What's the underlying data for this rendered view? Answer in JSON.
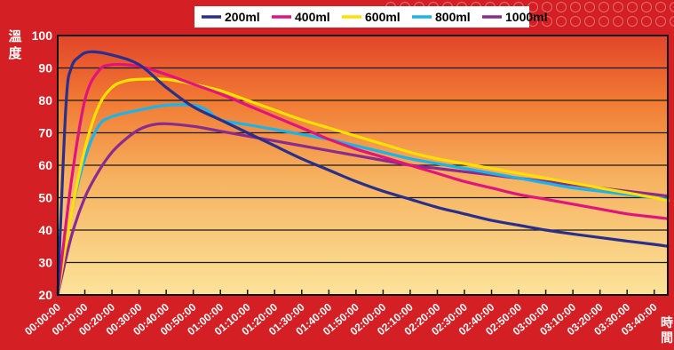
{
  "chart_data": {
    "type": "line",
    "title": "",
    "ylabel": "溫度",
    "xlabel": "時間",
    "ylim": [
      20,
      100
    ],
    "yticks": [
      20,
      30,
      40,
      50,
      60,
      70,
      80,
      90,
      100
    ],
    "x_tick_labels": [
      "00:00:00",
      "00:10:00",
      "00:20:00",
      "00:30:00",
      "00:40:00",
      "00:50:00",
      "01:00:00",
      "01:10:00",
      "01:20:00",
      "01:30:00",
      "01:40:00",
      "01:50:00",
      "02:00:00",
      "02:10:00",
      "02:20:00",
      "02:30:00",
      "02:40:00",
      "02:50:00",
      "03:00:00",
      "03:10:00",
      "03:20:00",
      "03:30:00",
      "03:40:00"
    ],
    "xlim_minutes": [
      0,
      225
    ],
    "x_unit_note": "minutes",
    "grid": true,
    "legend_position": "top",
    "series": [
      {
        "name": "200ml",
        "color": "#2a2f8c",
        "x": [
          0,
          3,
          5,
          8,
          12,
          20,
          30,
          40,
          50,
          60,
          70,
          80,
          90,
          100,
          110,
          120,
          130,
          140,
          150,
          160,
          170,
          180,
          190,
          200,
          210,
          220,
          225
        ],
        "y": [
          20,
          78,
          90,
          93.5,
          95,
          94,
          91,
          84,
          78,
          74,
          70,
          66,
          62,
          58.5,
          55,
          52,
          49.5,
          47,
          45,
          43,
          41.5,
          40,
          38.8,
          37.7,
          36.6,
          35.6,
          35
        ]
      },
      {
        "name": "400ml",
        "color": "#e0147e",
        "x": [
          0,
          5,
          10,
          15,
          20,
          30,
          40,
          50,
          60,
          70,
          80,
          90,
          100,
          110,
          120,
          130,
          140,
          150,
          160,
          170,
          180,
          190,
          200,
          210,
          220,
          225
        ],
        "y": [
          20,
          55,
          80,
          89,
          91,
          90.5,
          88,
          85,
          82,
          78.5,
          75,
          71.5,
          68,
          65,
          62.5,
          60,
          57.5,
          55,
          53,
          51,
          49.5,
          48,
          46.5,
          45,
          44,
          43.5
        ]
      },
      {
        "name": "600ml",
        "color": "#ffe000",
        "x": [
          0,
          5,
          10,
          15,
          20,
          25,
          30,
          40,
          50,
          60,
          70,
          80,
          90,
          100,
          110,
          120,
          130,
          140,
          150,
          160,
          170,
          180,
          190,
          200,
          210,
          220,
          225
        ],
        "y": [
          20,
          45,
          65,
          78,
          84,
          86,
          86.5,
          86.5,
          85,
          83,
          80,
          77,
          74,
          71.5,
          69,
          66.5,
          64,
          62,
          60.5,
          59,
          57.5,
          56,
          54.5,
          53,
          51.5,
          50,
          49
        ]
      },
      {
        "name": "800ml",
        "color": "#1ab4e8",
        "x": [
          0,
          5,
          10,
          15,
          20,
          30,
          40,
          50,
          55,
          60,
          70,
          80,
          90,
          100,
          110,
          120,
          130,
          140,
          150,
          160,
          170,
          180,
          190,
          200,
          210,
          220,
          225
        ],
        "y": [
          20,
          45,
          62,
          72,
          75,
          77,
          78.5,
          78.5,
          77,
          74,
          72.5,
          71,
          69.5,
          68,
          66,
          64,
          62,
          60.5,
          59,
          57.5,
          56,
          54.5,
          53,
          52,
          51,
          50,
          49.5
        ]
      },
      {
        "name": "1000ml",
        "color": "#8a2b8f",
        "x": [
          0,
          5,
          10,
          15,
          20,
          25,
          30,
          35,
          40,
          50,
          60,
          70,
          80,
          90,
          100,
          110,
          120,
          130,
          140,
          150,
          160,
          170,
          180,
          190,
          200,
          210,
          220,
          225
        ],
        "y": [
          20,
          38,
          50,
          58,
          64,
          68,
          71,
          72.5,
          72.8,
          72,
          70.5,
          69,
          67.5,
          66,
          64.5,
          63,
          61.5,
          60,
          59,
          58,
          57,
          56,
          55,
          54,
          53,
          52,
          51,
          50.5
        ]
      }
    ]
  }
}
